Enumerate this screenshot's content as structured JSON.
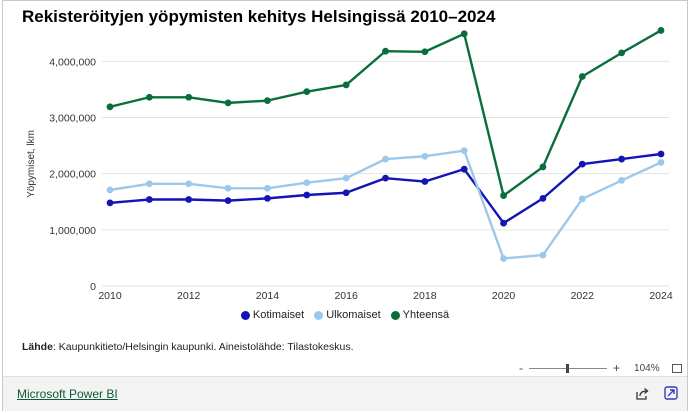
{
  "chart_data": {
    "type": "line",
    "title": "Rekisteröityjen yöpymisten kehitys Helsingissä 2010–2024",
    "ylabel": "Yöpymiset, lkm",
    "xlabel": "",
    "x": [
      2010,
      2011,
      2012,
      2013,
      2014,
      2015,
      2016,
      2017,
      2018,
      2019,
      2020,
      2021,
      2022,
      2023,
      2024
    ],
    "xticks": [
      "2010",
      "2012",
      "2014",
      "2016",
      "2018",
      "2020",
      "2022",
      "2024"
    ],
    "yticks": [
      "0",
      "1,000,000",
      "2,000,000",
      "3,000,000",
      "4,000,000"
    ],
    "ylim": [
      0,
      4700000
    ],
    "grid": true,
    "legend_position": "bottom-center",
    "series": [
      {
        "name": "Kotimaiset",
        "color": "#1414b4",
        "values": [
          1480000,
          1540000,
          1540000,
          1520000,
          1560000,
          1620000,
          1660000,
          1920000,
          1860000,
          2080000,
          1120000,
          1560000,
          2170000,
          2260000,
          2350000
        ]
      },
      {
        "name": "Ulkomaiset",
        "color": "#9cc8eb",
        "values": [
          1710000,
          1820000,
          1820000,
          1740000,
          1740000,
          1840000,
          1920000,
          2260000,
          2310000,
          2410000,
          490000,
          550000,
          1550000,
          1880000,
          2200000
        ]
      },
      {
        "name": "Yhteensä",
        "color": "#0a6e3c",
        "values": [
          3190000,
          3360000,
          3360000,
          3260000,
          3300000,
          3460000,
          3580000,
          4180000,
          4170000,
          4490000,
          1610000,
          2120000,
          3730000,
          4150000,
          4550000
        ]
      }
    ]
  },
  "source": {
    "label": "Lähde",
    "text": ": Kaupunkitieto/Helsingin kaupunki. Aineistolähde: Tilastokeskus."
  },
  "zoom": {
    "minus": "-",
    "plus": "+",
    "level": "104%"
  },
  "footer": {
    "link_text": "Microsoft Power BI",
    "share_icon": "share-icon",
    "expand_icon": "expand-icon"
  }
}
